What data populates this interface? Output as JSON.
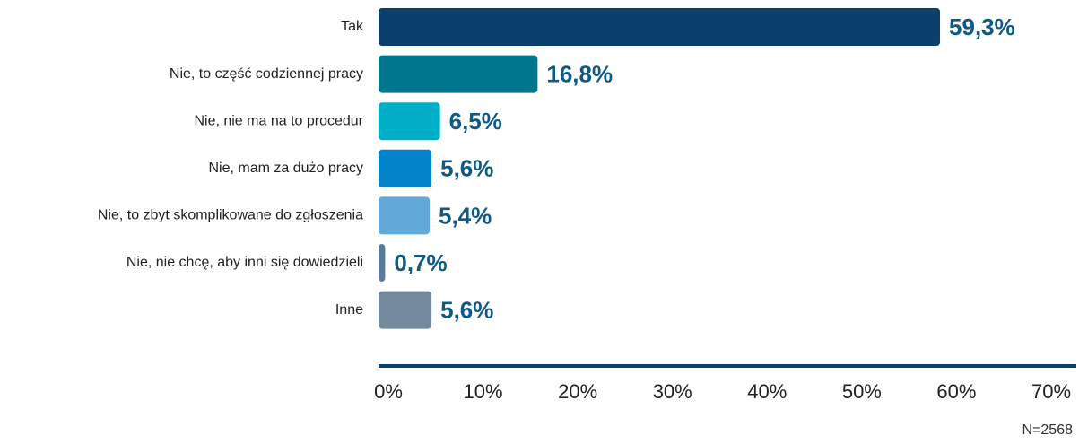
{
  "chart_data": {
    "type": "barh",
    "categories": [
      "Tak",
      "Nie, to część codziennej pracy",
      "Nie, nie ma na to procedur",
      "Nie, mam za dużo pracy",
      "Nie, to zbyt skomplikowane do zgłoszenia",
      "Nie, nie chcę, aby inni się dowiedzieli",
      "Inne"
    ],
    "values": [
      59.3,
      16.8,
      6.5,
      5.6,
      5.4,
      0.7,
      5.6
    ],
    "value_labels": [
      "59,3%",
      "16,8%",
      "6,5%",
      "5,6%",
      "5,4%",
      "0,7%",
      "5,6%"
    ],
    "colors": [
      "#0b3f6e",
      "#00768f",
      "#00afc7",
      "#0083c8",
      "#62a8d9",
      "#5a7a95",
      "#74899d"
    ],
    "xlim": [
      0,
      70
    ],
    "xticks": [
      {
        "value": 0,
        "label": "0%"
      },
      {
        "value": 10,
        "label": "10%"
      },
      {
        "value": 20,
        "label": "20%"
      },
      {
        "value": 30,
        "label": "30%"
      },
      {
        "value": 40,
        "label": "40%"
      },
      {
        "value": 50,
        "label": "50%"
      },
      {
        "value": 60,
        "label": "60%"
      },
      {
        "value": 70,
        "label": "70%"
      }
    ],
    "note": "N=2568"
  }
}
